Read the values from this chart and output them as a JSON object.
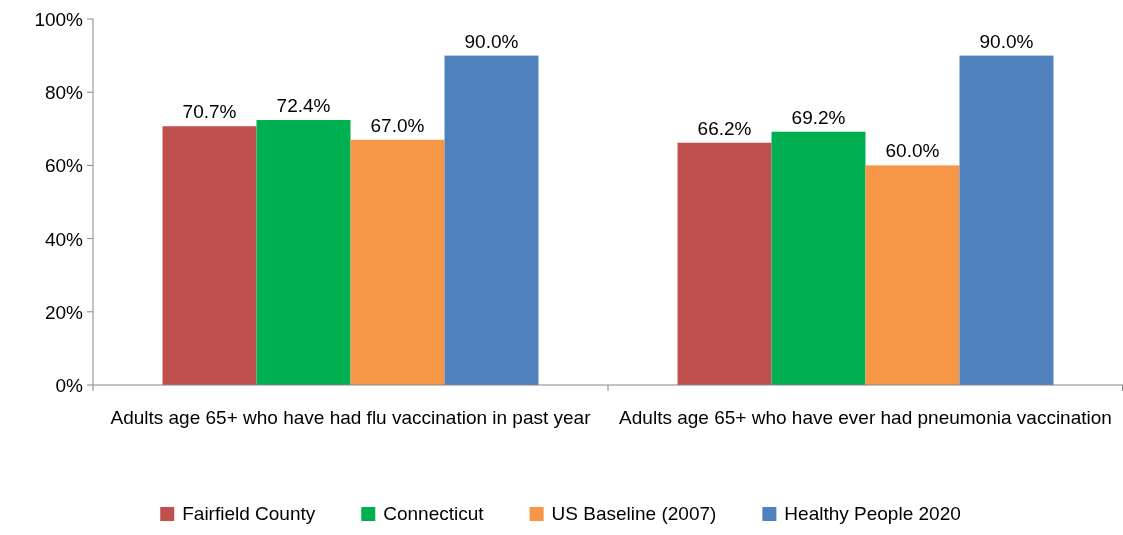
{
  "chart_data": {
    "type": "bar",
    "categories": [
      "Adults age 65+ who have had flu vaccination in past year",
      "Adults age 65+ who have ever had pneumonia vaccination"
    ],
    "series": [
      {
        "name": "Fairfield County",
        "color": "#c0504d",
        "values": [
          70.7,
          66.2
        ],
        "value_labels": [
          "70.7%",
          "66.2%"
        ]
      },
      {
        "name": "Connecticut",
        "color": "#00b050",
        "values": [
          72.4,
          69.2
        ],
        "value_labels": [
          "72.4%",
          "69.2%"
        ]
      },
      {
        "name": "US Baseline (2007)",
        "color": "#f79646",
        "values": [
          67.0,
          60.0
        ],
        "value_labels": [
          "67.0%",
          "60.0%"
        ]
      },
      {
        "name": "Healthy People 2020",
        "color": "#4f81bd",
        "values": [
          90.0,
          90.0
        ],
        "value_labels": [
          "90.0%",
          "90.0%"
        ]
      }
    ],
    "ylim": [
      0,
      100
    ],
    "yticks": [
      {
        "value": 0,
        "label": "0%"
      },
      {
        "value": 20,
        "label": "20%"
      },
      {
        "value": 40,
        "label": "40%"
      },
      {
        "value": 60,
        "label": "60%"
      },
      {
        "value": 80,
        "label": "80%"
      },
      {
        "value": 100,
        "label": "100%"
      }
    ],
    "grid": false,
    "legend": "bottom"
  }
}
